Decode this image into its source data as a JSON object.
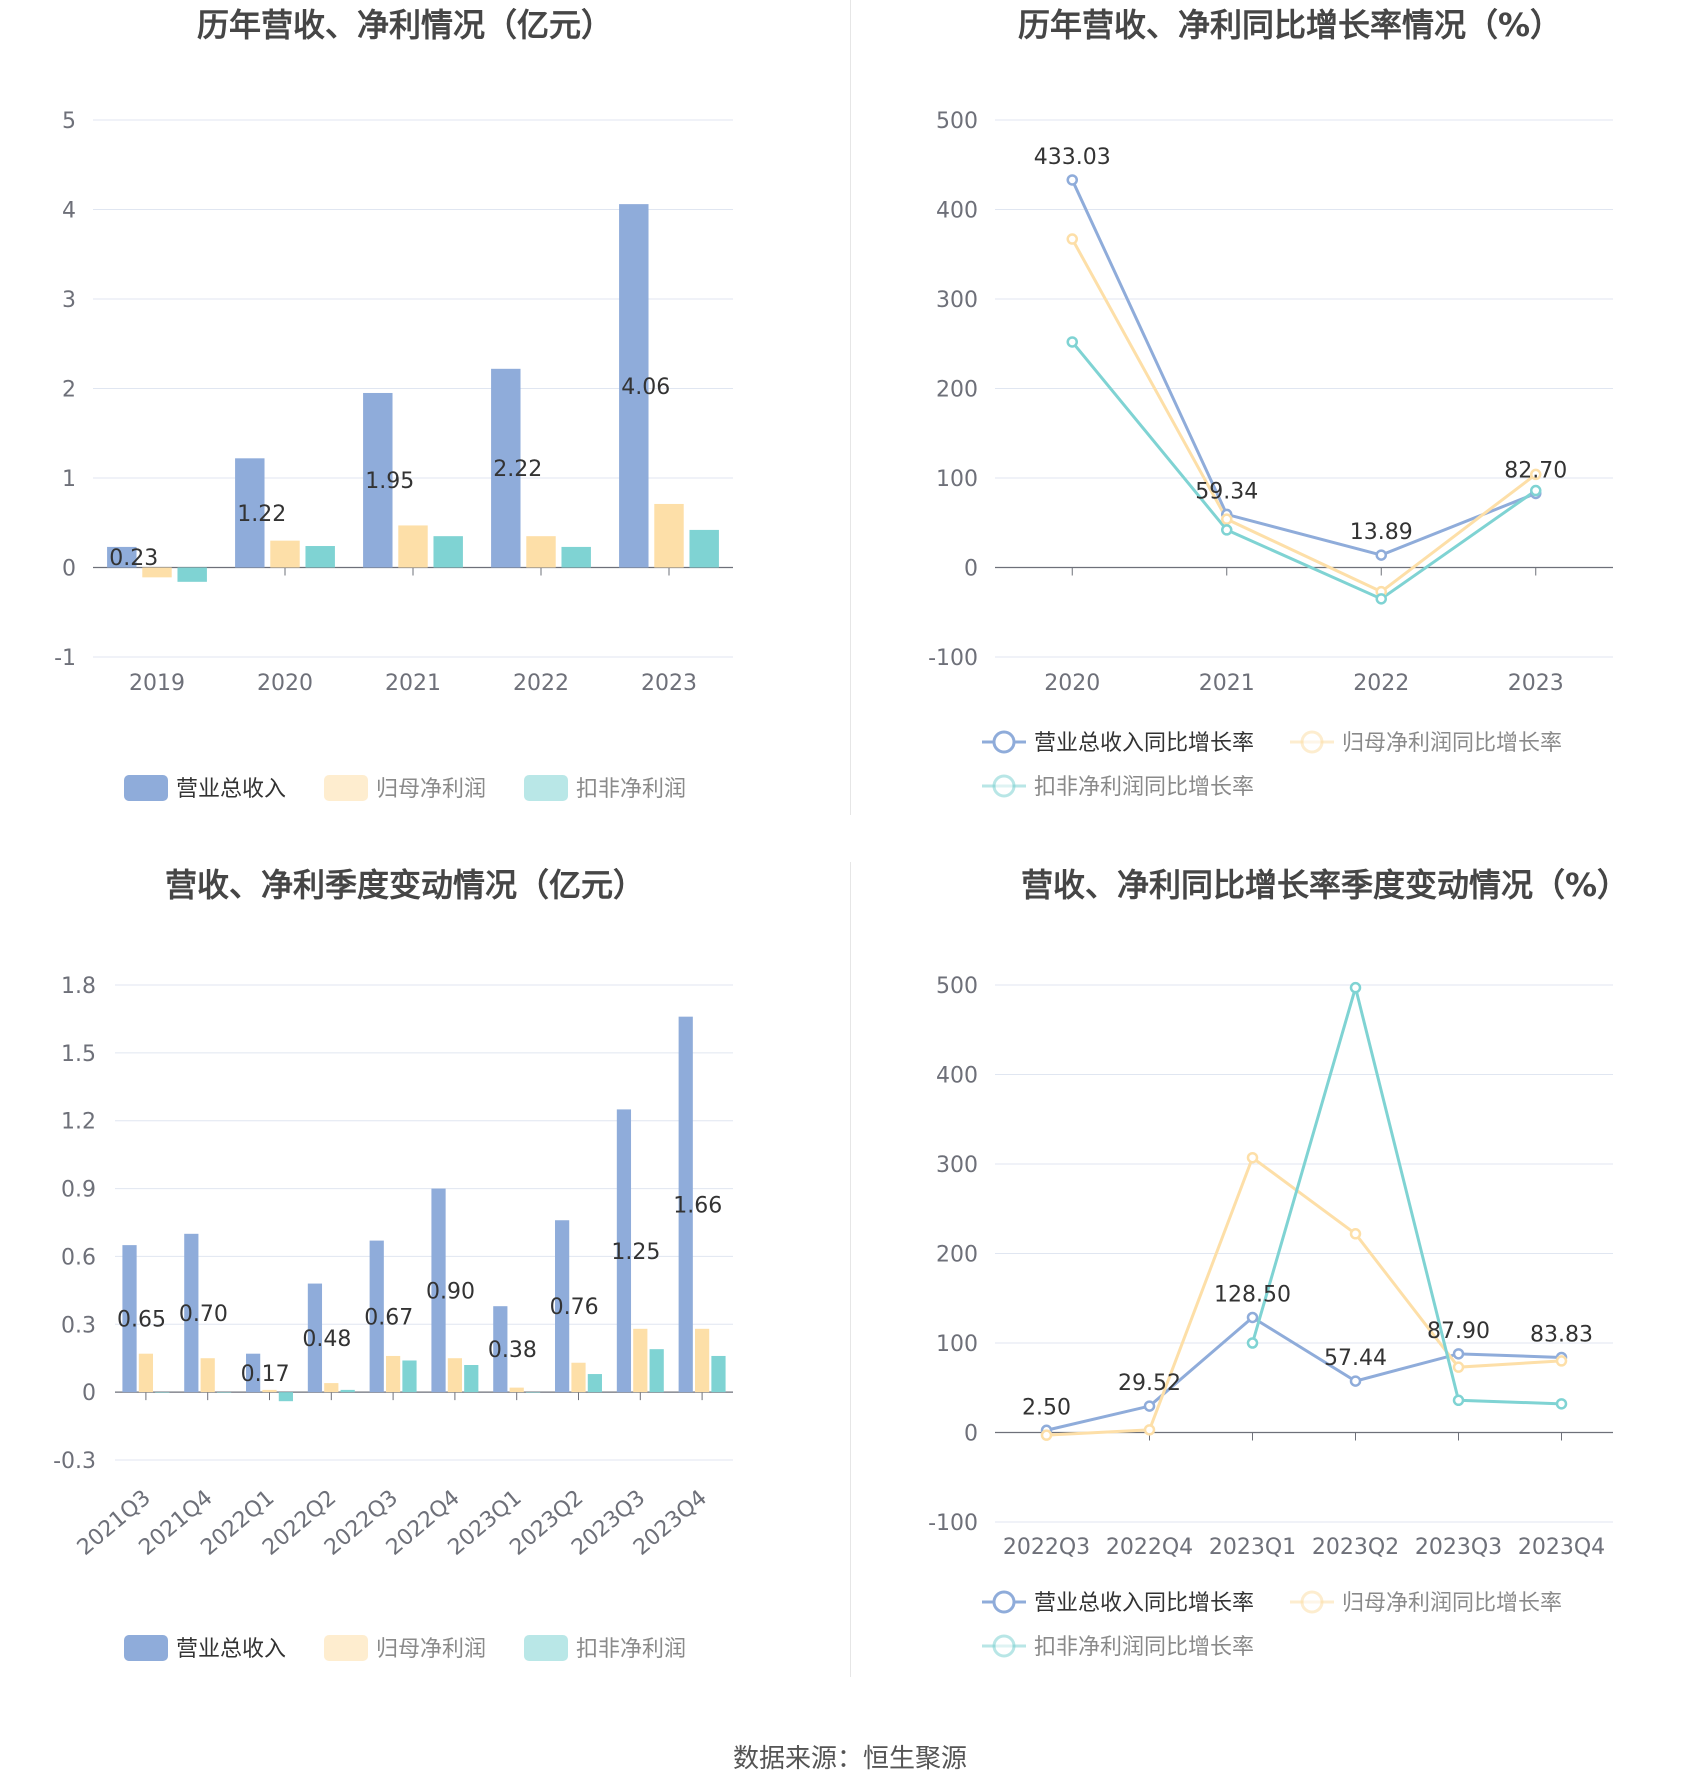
{
  "colors": {
    "revenue": "#8FACDA",
    "net_profit": "#FDDFA8",
    "deducted_profit": "#7FD3D3",
    "grid": "#E0E6F1",
    "axis_text": "#6E7079",
    "title_text": "#464646"
  },
  "footer": {
    "source": "数据来源：恒生聚源"
  },
  "chart_data": [
    {
      "type": "bar",
      "title": "历年营收、净利情况（亿元）",
      "categories": [
        "2019",
        "2020",
        "2021",
        "2022",
        "2023"
      ],
      "ylim": [
        -1,
        5
      ],
      "yticks": [
        -1,
        0,
        1,
        2,
        3,
        4,
        5
      ],
      "ytick_labels": [
        "-1",
        "0",
        "1",
        "2",
        "3",
        "4",
        "5"
      ],
      "series": [
        {
          "name": "营业总收入",
          "values": [
            0.23,
            1.22,
            1.95,
            2.22,
            4.06
          ],
          "labels": [
            "0.23",
            "1.22",
            "1.95",
            "2.22",
            "4.06"
          ]
        },
        {
          "name": "归母净利润",
          "values": [
            -0.11,
            0.3,
            0.47,
            0.35,
            0.71
          ]
        },
        {
          "name": "扣非净利润",
          "values": [
            -0.16,
            0.24,
            0.35,
            0.23,
            0.42
          ]
        }
      ],
      "legend": "bottom",
      "grid": true
    },
    {
      "type": "line",
      "title": "历年营收、净利同比增长率情况（%）",
      "categories": [
        "2020",
        "2021",
        "2022",
        "2023"
      ],
      "ylim": [
        -100,
        500
      ],
      "yticks": [
        -100,
        0,
        100,
        200,
        300,
        400,
        500
      ],
      "ytick_labels": [
        "-100",
        "0",
        "100",
        "200",
        "300",
        "400",
        "500"
      ],
      "series": [
        {
          "name": "营业总收入同比增长率",
          "values": [
            433.03,
            59.34,
            13.89,
            82.7
          ],
          "labels": [
            "433.03",
            "59.34",
            "13.89",
            "82.70"
          ]
        },
        {
          "name": "归母净利润同比增长率",
          "values": [
            367,
            54,
            -27,
            104
          ]
        },
        {
          "name": "扣非净利润同比增长率",
          "values": [
            252,
            42,
            -35,
            86
          ]
        }
      ],
      "legend": "bottom",
      "grid": true
    },
    {
      "type": "bar",
      "title": "营收、净利季度变动情况（亿元）",
      "categories": [
        "2021Q3",
        "2021Q4",
        "2022Q1",
        "2022Q2",
        "2022Q3",
        "2022Q4",
        "2023Q1",
        "2023Q2",
        "2023Q3",
        "2023Q4"
      ],
      "ylim": [
        -0.3,
        1.8
      ],
      "yticks": [
        -0.3,
        0,
        0.3,
        0.6,
        0.9,
        1.2,
        1.5,
        1.8
      ],
      "ytick_labels": [
        "-0.3",
        "0",
        "0.3",
        "0.6",
        "0.9",
        "1.2",
        "1.5",
        "1.8"
      ],
      "series": [
        {
          "name": "营业总收入",
          "values": [
            0.65,
            0.7,
            0.17,
            0.48,
            0.67,
            0.9,
            0.38,
            0.76,
            1.25,
            1.66
          ],
          "labels": [
            "0.65",
            "0.70",
            "0.17",
            "0.48",
            "0.67",
            "0.90",
            "0.38",
            "0.76",
            "1.25",
            "1.66"
          ]
        },
        {
          "name": "归母净利润",
          "values": [
            0.17,
            0.15,
            0.01,
            0.04,
            0.16,
            0.15,
            0.02,
            0.13,
            0.28,
            0.28
          ]
        },
        {
          "name": "扣非净利润",
          "values": [
            0.0,
            0.0,
            -0.04,
            0.01,
            0.14,
            0.12,
            0.0,
            0.08,
            0.19,
            0.16
          ]
        }
      ],
      "legend": "bottom",
      "grid": true
    },
    {
      "type": "line",
      "title": "营收、净利同比增长率季度变动情况（%）",
      "categories": [
        "2022Q3",
        "2022Q4",
        "2023Q1",
        "2023Q2",
        "2023Q3",
        "2023Q4"
      ],
      "ylim": [
        -100,
        500
      ],
      "yticks": [
        -100,
        0,
        100,
        200,
        300,
        400,
        500
      ],
      "ytick_labels": [
        "-100",
        "0",
        "100",
        "200",
        "300",
        "400",
        "500"
      ],
      "series": [
        {
          "name": "营业总收入同比增长率",
          "values": [
            2.5,
            29.52,
            128.5,
            57.44,
            87.9,
            83.83
          ],
          "labels": [
            "2.50",
            "29.52",
            "128.50",
            "57.44",
            "87.90",
            "83.83"
          ]
        },
        {
          "name": "归母净利润同比增长率",
          "values": [
            -3,
            3,
            307,
            222,
            73,
            80
          ]
        },
        {
          "name": "扣非净利润同比增长率",
          "values": [
            null,
            null,
            100,
            497,
            36,
            32
          ]
        }
      ],
      "legend": "bottom",
      "grid": true
    }
  ]
}
